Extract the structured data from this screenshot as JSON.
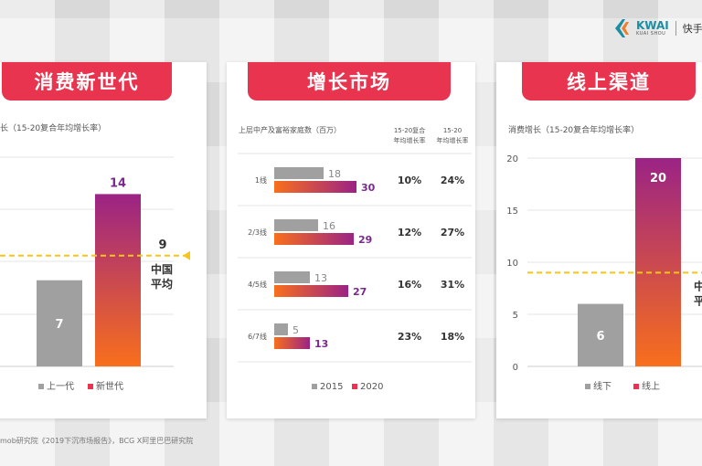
{
  "brand": {
    "logo_text": "KWAI",
    "logo_sub": "KUAI SHOU",
    "logo_cn": "快手营"
  },
  "colors": {
    "accent": "#e8344e",
    "bar_grey": "#a0a0a0",
    "gradient_top": "#9b2385",
    "gradient_bottom": "#f86f1c",
    "avg_line": "#f5c518",
    "value_purple": "#7a2a8c"
  },
  "panels": [
    {
      "title": "消费新世代",
      "subtitle": "长（15-20复合年均增长率）"
    },
    {
      "title": "增长市场",
      "subtitle": "上层中产及富裕家庭数（百万）",
      "col1_header": "15-20复合\n年均增长率",
      "col2_header": "15-20\n年均增长率"
    },
    {
      "title": "线上渠道",
      "subtitle": "消费增长（15-20复合年均增长率）"
    }
  ],
  "footnote": "mob研究院《2019下沉市场报告》，BCG X阿里巴巴研究院",
  "chart_data": [
    {
      "type": "bar",
      "categories": [
        "上一代",
        "新世代"
      ],
      "values": [
        7,
        14
      ],
      "reference_line": {
        "value": 9,
        "label": "中国平均"
      },
      "ylim": [
        0,
        17
      ]
    },
    {
      "type": "bar",
      "orientation": "horizontal",
      "categories": [
        "1线",
        "2/3线",
        "4/5线",
        "6/7线"
      ],
      "series": [
        {
          "name": "2015",
          "values": [
            18,
            16,
            13,
            5
          ]
        },
        {
          "name": "2020",
          "values": [
            30,
            29,
            27,
            13
          ]
        }
      ],
      "table": {
        "col1": [
          "10%",
          "12%",
          "16%",
          "23%"
        ],
        "col2": [
          "24%",
          "27%",
          "31%",
          "18%"
        ]
      }
    },
    {
      "type": "bar",
      "categories": [
        "线下",
        "线上"
      ],
      "values": [
        6,
        20
      ],
      "reference_line": {
        "value": 9,
        "label": "中国平均"
      },
      "yticks": [
        0,
        5,
        10,
        15,
        20
      ],
      "ylim": [
        0,
        20
      ]
    }
  ]
}
